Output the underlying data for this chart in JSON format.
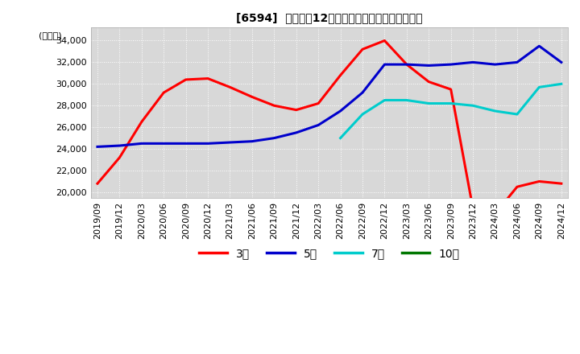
{
  "title": "[6594]  経常利益12か月移動合計の標準偏差の推移",
  "ylabel": "(百万円)",
  "ylim": [
    19500,
    35200
  ],
  "yticks": [
    20000,
    22000,
    24000,
    26000,
    28000,
    30000,
    32000,
    34000
  ],
  "plot_bg": "#d8d8d8",
  "legend_labels": [
    "3年",
    "5年",
    "7年",
    "10年"
  ],
  "legend_colors": [
    "#ff0000",
    "#0000cc",
    "#00cccc",
    "#007700"
  ],
  "x_labels": [
    "2019/09",
    "2019/12",
    "2020/03",
    "2020/06",
    "2020/09",
    "2020/12",
    "2021/03",
    "2021/06",
    "2021/09",
    "2021/12",
    "2022/03",
    "2022/06",
    "2022/09",
    "2022/12",
    "2023/03",
    "2023/06",
    "2023/09",
    "2023/12",
    "2024/03",
    "2024/06",
    "2024/09",
    "2024/12"
  ],
  "series_3yr": [
    20800,
    23200,
    26500,
    29200,
    30400,
    30500,
    29700,
    28800,
    28000,
    27600,
    28200,
    30800,
    33200,
    34000,
    31800,
    30200,
    29500,
    18500,
    18000,
    20500,
    21000,
    20800
  ],
  "series_5yr": [
    24200,
    24300,
    24500,
    24500,
    24500,
    24500,
    24600,
    24700,
    25000,
    25500,
    26200,
    27500,
    29200,
    31800,
    31800,
    31700,
    31800,
    32000,
    31800,
    32000,
    33500,
    32000
  ],
  "series_7yr": [
    null,
    null,
    null,
    null,
    null,
    null,
    null,
    null,
    null,
    null,
    null,
    25000,
    27200,
    28500,
    28500,
    28200,
    28200,
    28000,
    27500,
    27200,
    29700,
    30000
  ],
  "series_10yr": [
    null,
    null,
    null,
    null,
    null,
    null,
    null,
    null,
    null,
    null,
    null,
    null,
    null,
    null,
    null,
    null,
    null,
    null,
    null,
    null,
    null,
    null
  ]
}
